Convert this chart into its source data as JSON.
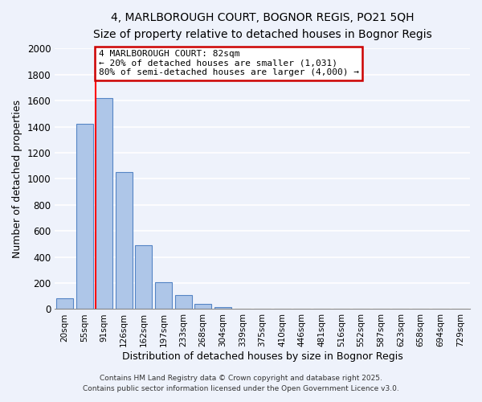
{
  "title": "4, MARLBOROUGH COURT, BOGNOR REGIS, PO21 5QH",
  "subtitle": "Size of property relative to detached houses in Bognor Regis",
  "xlabel": "Distribution of detached houses by size in Bognor Regis",
  "ylabel": "Number of detached properties",
  "bar_labels": [
    "20sqm",
    "55sqm",
    "91sqm",
    "126sqm",
    "162sqm",
    "197sqm",
    "233sqm",
    "268sqm",
    "304sqm",
    "339sqm",
    "375sqm",
    "410sqm",
    "446sqm",
    "481sqm",
    "516sqm",
    "552sqm",
    "587sqm",
    "623sqm",
    "658sqm",
    "694sqm",
    "729sqm"
  ],
  "bar_values": [
    80,
    1420,
    1620,
    1055,
    490,
    205,
    110,
    40,
    15,
    0,
    0,
    0,
    0,
    0,
    0,
    0,
    0,
    0,
    0,
    0,
    0
  ],
  "bar_color": "#aec6e8",
  "bar_edge_color": "#5585c5",
  "background_color": "#eef2fb",
  "grid_color": "#ffffff",
  "red_line_index": 2,
  "annotation_text_line1": "4 MARLBOROUGH COURT: 82sqm",
  "annotation_text_line2": "← 20% of detached houses are smaller (1,031)",
  "annotation_text_line3": "80% of semi-detached houses are larger (4,000) →",
  "annotation_box_color": "#ffffff",
  "annotation_box_edge": "#cc0000",
  "ylim": [
    0,
    2000
  ],
  "yticks": [
    0,
    200,
    400,
    600,
    800,
    1000,
    1200,
    1400,
    1600,
    1800,
    2000
  ],
  "footer1": "Contains HM Land Registry data © Crown copyright and database right 2025.",
  "footer2": "Contains public sector information licensed under the Open Government Licence v3.0."
}
